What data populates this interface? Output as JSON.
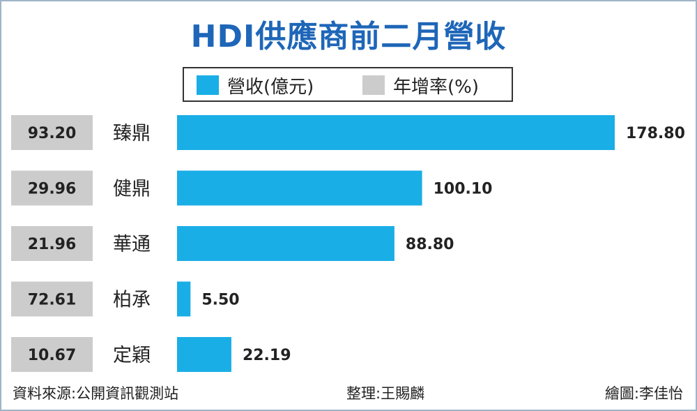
{
  "chart_data": {
    "type": "bar",
    "orientation": "horizontal",
    "title": "HDI供應商前二月營收",
    "categories": [
      "臻鼎",
      "健鼎",
      "華通",
      "柏承",
      "定穎"
    ],
    "series": [
      {
        "name": "營收(億元)",
        "values": [
          178.8,
          100.1,
          88.8,
          5.5,
          22.19
        ],
        "labels": [
          "178.80",
          "100.10",
          "88.80",
          "5.50",
          "22.19"
        ],
        "color": "#1aaee6"
      },
      {
        "name": "年增率(%)",
        "values": [
          93.2,
          29.96,
          21.96,
          72.61,
          10.67
        ],
        "labels": [
          "93.20",
          "29.96",
          "21.96",
          "72.61",
          "10.67"
        ],
        "color": "#cccccc"
      }
    ],
    "legend": [
      "營收(億元)",
      "年增率(%)"
    ],
    "legend_position": "top-center",
    "grid": false
  },
  "legend_labels": {
    "revenue": "營收(億元)",
    "growth": "年增率(%)"
  },
  "footer": {
    "source": "資料來源:公開資訊觀測站",
    "editor": "整理:王賜麟",
    "artist": "繪圖:李佳怡"
  },
  "colors": {
    "title": "#1e66b8",
    "bar": "#1aaee6",
    "box": "#cccccc",
    "frame": "#9fb4c8"
  }
}
